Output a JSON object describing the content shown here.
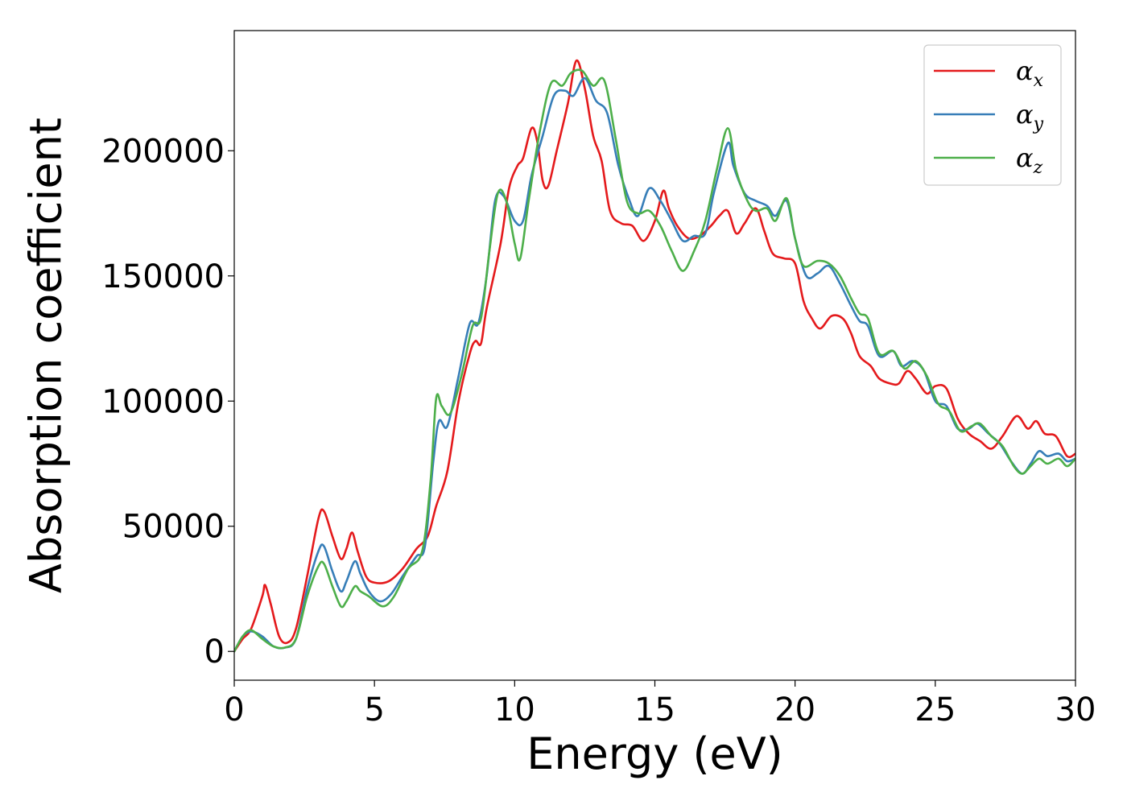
{
  "chart_data": {
    "type": "line",
    "xlabel": "Energy (eV)",
    "ylabel": "Absorption coefficient",
    "xlim": [
      0,
      30
    ],
    "ylim": [
      -11500,
      248000
    ],
    "xticks": [
      "0",
      "5",
      "10",
      "15",
      "20",
      "25",
      "30"
    ],
    "yticks": [
      "0",
      "50000",
      "100000",
      "150000",
      "200000"
    ],
    "grid": false,
    "legend_position": "top-right",
    "series": [
      {
        "name": "α",
        "subscript": "x",
        "color": "#e41a1c",
        "points": [
          [
            0,
            0
          ],
          [
            0.3,
            5000
          ],
          [
            0.6,
            9000
          ],
          [
            1.0,
            22000
          ],
          [
            1.1,
            26500
          ],
          [
            1.3,
            19000
          ],
          [
            1.6,
            6000
          ],
          [
            1.9,
            3500
          ],
          [
            2.2,
            9000
          ],
          [
            2.6,
            30000
          ],
          [
            3.0,
            53000
          ],
          [
            3.2,
            56000
          ],
          [
            3.5,
            46000
          ],
          [
            3.8,
            37000
          ],
          [
            4.0,
            41000
          ],
          [
            4.2,
            47500
          ],
          [
            4.4,
            40000
          ],
          [
            4.7,
            30000
          ],
          [
            5.0,
            27500
          ],
          [
            5.5,
            28000
          ],
          [
            6.0,
            33000
          ],
          [
            6.5,
            41000
          ],
          [
            6.9,
            46000
          ],
          [
            7.2,
            58000
          ],
          [
            7.6,
            72000
          ],
          [
            8.0,
            100000
          ],
          [
            8.4,
            119000
          ],
          [
            8.6,
            124000
          ],
          [
            8.8,
            123000
          ],
          [
            9.0,
            137000
          ],
          [
            9.5,
            163000
          ],
          [
            9.8,
            185000
          ],
          [
            10.1,
            194000
          ],
          [
            10.3,
            197000
          ],
          [
            10.6,
            209000
          ],
          [
            10.8,
            204000
          ],
          [
            11.0,
            188000
          ],
          [
            11.2,
            186000
          ],
          [
            11.5,
            200000
          ],
          [
            11.9,
            219000
          ],
          [
            12.2,
            236000
          ],
          [
            12.5,
            225000
          ],
          [
            12.8,
            206000
          ],
          [
            13.1,
            196000
          ],
          [
            13.4,
            176000
          ],
          [
            13.8,
            171000
          ],
          [
            14.2,
            170000
          ],
          [
            14.6,
            164000
          ],
          [
            15.0,
            172000
          ],
          [
            15.3,
            184000
          ],
          [
            15.5,
            177000
          ],
          [
            15.8,
            170000
          ],
          [
            16.2,
            165000
          ],
          [
            16.6,
            166000
          ],
          [
            17.0,
            170000
          ],
          [
            17.3,
            174000
          ],
          [
            17.6,
            176000
          ],
          [
            17.9,
            167000
          ],
          [
            18.2,
            171000
          ],
          [
            18.6,
            177000
          ],
          [
            18.9,
            168000
          ],
          [
            19.2,
            159000
          ],
          [
            19.6,
            157000
          ],
          [
            20.0,
            155000
          ],
          [
            20.3,
            140000
          ],
          [
            20.6,
            133000
          ],
          [
            20.9,
            129000
          ],
          [
            21.3,
            134000
          ],
          [
            21.7,
            133000
          ],
          [
            22.0,
            127000
          ],
          [
            22.3,
            118000
          ],
          [
            22.7,
            114000
          ],
          [
            23.0,
            109000
          ],
          [
            23.4,
            107000
          ],
          [
            23.7,
            107000
          ],
          [
            24.0,
            112000
          ],
          [
            24.3,
            109000
          ],
          [
            24.7,
            103000
          ],
          [
            25.0,
            106000
          ],
          [
            25.4,
            105000
          ],
          [
            25.8,
            93000
          ],
          [
            26.2,
            87000
          ],
          [
            26.6,
            84000
          ],
          [
            27.0,
            81000
          ],
          [
            27.4,
            86000
          ],
          [
            27.9,
            94000
          ],
          [
            28.3,
            89000
          ],
          [
            28.6,
            92000
          ],
          [
            28.9,
            87000
          ],
          [
            29.3,
            86000
          ],
          [
            29.7,
            78000
          ],
          [
            30.0,
            79000
          ]
        ]
      },
      {
        "name": "α",
        "subscript": "y",
        "color": "#377eb8",
        "points": [
          [
            0,
            0
          ],
          [
            0.3,
            6000
          ],
          [
            0.6,
            8000
          ],
          [
            1.0,
            6000
          ],
          [
            1.4,
            2000
          ],
          [
            1.8,
            1500
          ],
          [
            2.2,
            5000
          ],
          [
            2.6,
            25000
          ],
          [
            3.0,
            40000
          ],
          [
            3.2,
            42000
          ],
          [
            3.5,
            32000
          ],
          [
            3.8,
            24000
          ],
          [
            4.0,
            28000
          ],
          [
            4.3,
            36000
          ],
          [
            4.5,
            31000
          ],
          [
            4.8,
            24000
          ],
          [
            5.2,
            20000
          ],
          [
            5.6,
            23000
          ],
          [
            6.0,
            30000
          ],
          [
            6.5,
            38000
          ],
          [
            6.8,
            42000
          ],
          [
            7.1,
            76000
          ],
          [
            7.3,
            92000
          ],
          [
            7.6,
            90000
          ],
          [
            8.0,
            110000
          ],
          [
            8.4,
            131000
          ],
          [
            8.7,
            131000
          ],
          [
            9.0,
            150000
          ],
          [
            9.3,
            180000
          ],
          [
            9.6,
            182000
          ],
          [
            10.0,
            172000
          ],
          [
            10.3,
            172000
          ],
          [
            10.6,
            190000
          ],
          [
            11.0,
            206000
          ],
          [
            11.4,
            222000
          ],
          [
            11.8,
            224000
          ],
          [
            12.1,
            222000
          ],
          [
            12.5,
            229000
          ],
          [
            12.9,
            220000
          ],
          [
            13.3,
            215000
          ],
          [
            13.7,
            194000
          ],
          [
            14.1,
            180000
          ],
          [
            14.4,
            174000
          ],
          [
            14.8,
            185000
          ],
          [
            15.2,
            180000
          ],
          [
            15.6,
            172000
          ],
          [
            16.0,
            164000
          ],
          [
            16.4,
            166000
          ],
          [
            16.8,
            167000
          ],
          [
            17.1,
            183000
          ],
          [
            17.6,
            203000
          ],
          [
            17.8,
            194000
          ],
          [
            18.2,
            183000
          ],
          [
            18.6,
            180000
          ],
          [
            19.0,
            178000
          ],
          [
            19.3,
            174000
          ],
          [
            19.7,
            180000
          ],
          [
            20.0,
            165000
          ],
          [
            20.4,
            150000
          ],
          [
            20.8,
            151000
          ],
          [
            21.2,
            154000
          ],
          [
            21.6,
            147000
          ],
          [
            22.0,
            138000
          ],
          [
            22.3,
            132000
          ],
          [
            22.6,
            130000
          ],
          [
            23.0,
            118000
          ],
          [
            23.5,
            120000
          ],
          [
            23.8,
            114000
          ],
          [
            24.2,
            116000
          ],
          [
            24.6,
            112000
          ],
          [
            25.0,
            100000
          ],
          [
            25.4,
            98000
          ],
          [
            25.8,
            89000
          ],
          [
            26.2,
            89000
          ],
          [
            26.5,
            91000
          ],
          [
            26.9,
            87000
          ],
          [
            27.3,
            83000
          ],
          [
            27.7,
            76000
          ],
          [
            28.1,
            71000
          ],
          [
            28.4,
            75000
          ],
          [
            28.7,
            80000
          ],
          [
            29.0,
            78000
          ],
          [
            29.4,
            79000
          ],
          [
            29.7,
            76000
          ],
          [
            30.0,
            77000
          ]
        ]
      },
      {
        "name": "α",
        "subscript": "z",
        "color": "#4daf4a",
        "points": [
          [
            0,
            0
          ],
          [
            0.3,
            6000
          ],
          [
            0.6,
            8500
          ],
          [
            1.0,
            5000
          ],
          [
            1.4,
            2000
          ],
          [
            1.8,
            1500
          ],
          [
            2.2,
            5000
          ],
          [
            2.6,
            22000
          ],
          [
            3.0,
            34000
          ],
          [
            3.2,
            35000
          ],
          [
            3.5,
            26000
          ],
          [
            3.8,
            18000
          ],
          [
            4.0,
            20000
          ],
          [
            4.3,
            26000
          ],
          [
            4.5,
            24000
          ],
          [
            4.8,
            22000
          ],
          [
            5.3,
            18000
          ],
          [
            5.7,
            22000
          ],
          [
            6.2,
            33000
          ],
          [
            6.7,
            40000
          ],
          [
            7.0,
            68000
          ],
          [
            7.2,
            101000
          ],
          [
            7.4,
            98000
          ],
          [
            7.7,
            95000
          ],
          [
            8.1,
            110000
          ],
          [
            8.5,
            130000
          ],
          [
            8.8,
            133000
          ],
          [
            9.1,
            160000
          ],
          [
            9.4,
            183000
          ],
          [
            9.7,
            180000
          ],
          [
            10.0,
            163000
          ],
          [
            10.2,
            157000
          ],
          [
            10.5,
            180000
          ],
          [
            10.9,
            208000
          ],
          [
            11.3,
            227000
          ],
          [
            11.7,
            226000
          ],
          [
            12.0,
            231000
          ],
          [
            12.4,
            232000
          ],
          [
            12.8,
            226000
          ],
          [
            13.2,
            228000
          ],
          [
            13.6,
            205000
          ],
          [
            14.0,
            180000
          ],
          [
            14.4,
            175000
          ],
          [
            14.8,
            176000
          ],
          [
            15.2,
            170000
          ],
          [
            15.6,
            160000
          ],
          [
            16.0,
            152000
          ],
          [
            16.4,
            160000
          ],
          [
            16.8,
            172000
          ],
          [
            17.2,
            192000
          ],
          [
            17.6,
            209000
          ],
          [
            17.9,
            192000
          ],
          [
            18.3,
            180000
          ],
          [
            18.6,
            176000
          ],
          [
            19.0,
            177000
          ],
          [
            19.3,
            172000
          ],
          [
            19.7,
            181000
          ],
          [
            20.0,
            165000
          ],
          [
            20.3,
            154000
          ],
          [
            20.8,
            156000
          ],
          [
            21.2,
            155000
          ],
          [
            21.6,
            150000
          ],
          [
            22.0,
            141000
          ],
          [
            22.3,
            135000
          ],
          [
            22.6,
            133000
          ],
          [
            23.0,
            119000
          ],
          [
            23.5,
            120000
          ],
          [
            23.9,
            113000
          ],
          [
            24.3,
            116000
          ],
          [
            24.7,
            110000
          ],
          [
            25.1,
            99000
          ],
          [
            25.5,
            96000
          ],
          [
            25.9,
            88000
          ],
          [
            26.3,
            90000
          ],
          [
            26.6,
            91000
          ],
          [
            27.0,
            86000
          ],
          [
            27.4,
            82000
          ],
          [
            27.8,
            74000
          ],
          [
            28.1,
            71000
          ],
          [
            28.4,
            74000
          ],
          [
            28.7,
            77000
          ],
          [
            29.0,
            75000
          ],
          [
            29.4,
            77000
          ],
          [
            29.7,
            74000
          ],
          [
            30.0,
            77000
          ]
        ]
      }
    ]
  }
}
